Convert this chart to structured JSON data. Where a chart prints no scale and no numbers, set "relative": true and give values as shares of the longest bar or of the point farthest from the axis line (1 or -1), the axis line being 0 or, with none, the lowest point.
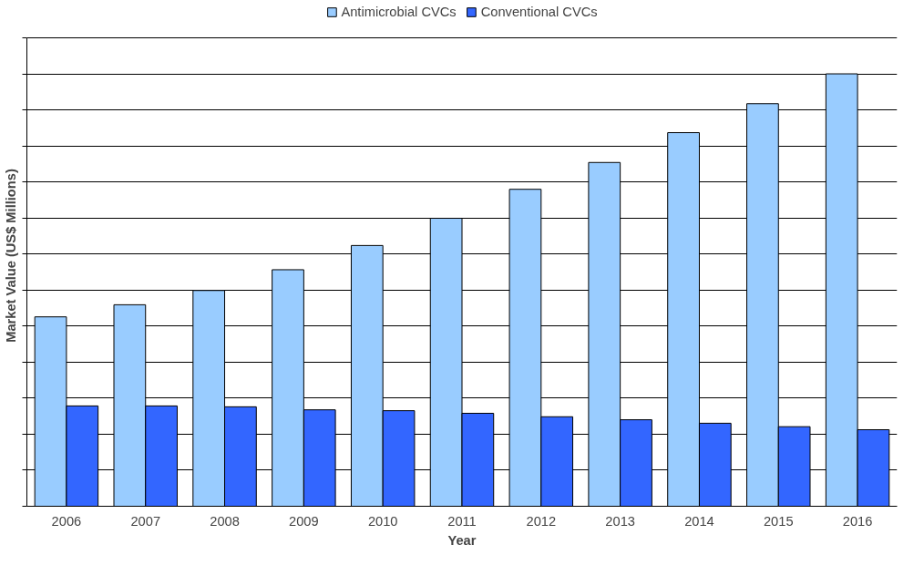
{
  "chart_data": {
    "type": "bar",
    "relative": true,
    "xlabel": "Year",
    "ylabel": "Market Value (US$ Millions)",
    "categories": [
      "2006",
      "2007",
      "2008",
      "2009",
      "2010",
      "2011",
      "2012",
      "2013",
      "2014",
      "2015",
      "2016"
    ],
    "series": [
      {
        "name": "Antimicrobial CVCs",
        "color": "#99ccff",
        "values": [
          0.438,
          0.466,
          0.499,
          0.547,
          0.603,
          0.666,
          0.733,
          0.795,
          0.864,
          0.931,
          1.0
        ]
      },
      {
        "name": "Conventional CVCs",
        "color": "#3366ff",
        "values": [
          0.232,
          0.232,
          0.23,
          0.223,
          0.221,
          0.215,
          0.207,
          0.2,
          0.192,
          0.184,
          0.177
        ]
      }
    ],
    "grid": "y",
    "legend": "top"
  }
}
